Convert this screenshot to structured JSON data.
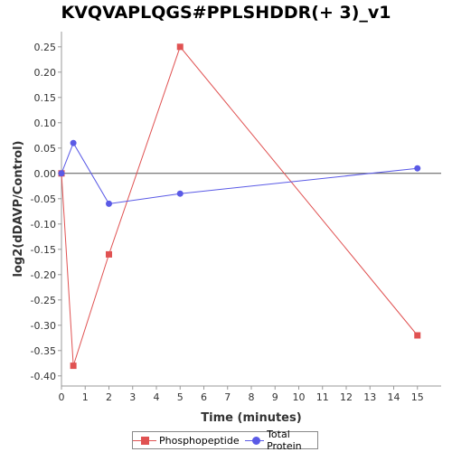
{
  "chart_data": {
    "type": "line",
    "title": "KVQVAPLQGS#PPLSHDDR(+ 3)_v1",
    "xlabel": "Time (minutes)",
    "ylabel": "log2(dDAVP/Control)",
    "xlim": [
      0,
      16
    ],
    "ylim": [
      -0.42,
      0.28
    ],
    "xticks": [
      0,
      1,
      2,
      3,
      4,
      5,
      6,
      7,
      8,
      9,
      10,
      11,
      12,
      13,
      14,
      15
    ],
    "yticks": [
      0.25,
      0.2,
      0.15,
      0.1,
      0.05,
      0.0,
      -0.05,
      -0.1,
      -0.15,
      -0.2,
      -0.25,
      -0.3,
      -0.35,
      -0.4
    ],
    "ytick_labels": [
      "0.25",
      "0.20",
      "0.15",
      "0.10",
      "0.05",
      "0.00",
      "-0.05",
      "-0.10",
      "-0.15",
      "-0.20",
      "-0.25",
      "-0.30",
      "-0.35",
      "-0.40"
    ],
    "zero_line": true,
    "grid": false,
    "legend_position": "bottom",
    "series": [
      {
        "name": "Phosphopeptide",
        "color": "#e05252",
        "marker": "square",
        "x": [
          0,
          0.5,
          2,
          5,
          15
        ],
        "y": [
          0.0,
          -0.38,
          -0.16,
          0.25,
          -0.32
        ]
      },
      {
        "name": "Total Protein",
        "color": "#5a5ae6",
        "marker": "circle",
        "x": [
          0,
          0.5,
          2,
          5,
          15
        ],
        "y": [
          0.0,
          0.06,
          -0.06,
          -0.04,
          0.01
        ]
      }
    ]
  }
}
